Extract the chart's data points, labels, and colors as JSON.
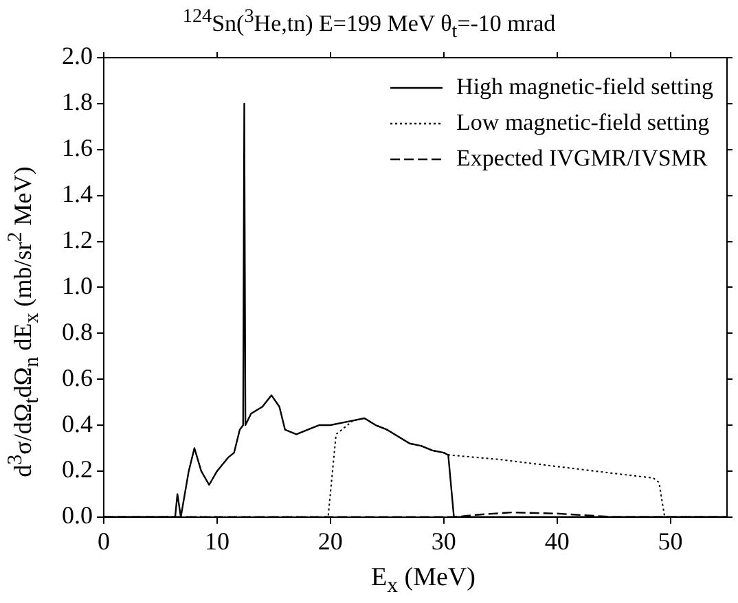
{
  "chart_data": {
    "type": "line",
    "title": "$^{124}$Sn($^{3}$He,tn) E=199 MeV θ$_{t}$=-10 mrad",
    "xlabel": "E$_{x}$ (MeV)",
    "ylabel": "d$^{3}$σ/dΩ$_{t}$dΩ$_{n}$ dE$_{x}$   (mb/sr$^{2}$ MeV)",
    "xlim": [
      0,
      55
    ],
    "xticks": [
      0,
      10,
      20,
      30,
      40,
      50
    ],
    "ylim": [
      0,
      2
    ],
    "yticks": [
      {
        "value": 0,
        "label": "0.0"
      },
      0.2,
      0.4,
      0.6,
      0.8,
      {
        "value": 1,
        "label": "1.0"
      },
      1.2,
      1.4,
      1.6,
      1.8,
      {
        "value": 2,
        "label": "2.0"
      }
    ],
    "grid": false,
    "legend": "top right",
    "marker": "none",
    "series": [
      {
        "name": "High magnetic-field setting",
        "color": "#000000",
        "line_style": "solid",
        "x": [
          0,
          6.3,
          6.5,
          6.8,
          7.5,
          8,
          8.3,
          8.6,
          9.3,
          10,
          11,
          11.5,
          12,
          12.3,
          12.4,
          12.5,
          13,
          14,
          14.8,
          15.5,
          16,
          17,
          18,
          19,
          20,
          22,
          23,
          24,
          25,
          26,
          27,
          28,
          29,
          30,
          30.4,
          30.9,
          55
        ],
        "values": [
          0,
          0,
          0.1,
          0,
          0.2,
          0.3,
          0.25,
          0.2,
          0.14,
          0.2,
          0.26,
          0.28,
          0.38,
          0.4,
          1.8,
          0.4,
          0.45,
          0.48,
          0.53,
          0.48,
          0.38,
          0.36,
          0.38,
          0.4,
          0.4,
          0.42,
          0.43,
          0.4,
          0.38,
          0.35,
          0.32,
          0.31,
          0.29,
          0.28,
          0.27,
          0,
          0
        ]
      },
      {
        "name": "Low magnetic-field setting",
        "color": "#000000",
        "line_style": "dotted",
        "x": [
          0,
          19.5,
          19.8,
          20.5,
          22,
          23,
          24,
          25,
          26,
          27,
          28,
          29,
          30,
          30.5,
          35,
          40,
          45,
          48.5,
          49,
          49.5,
          55
        ],
        "values": [
          0,
          0,
          0,
          0.36,
          0.42,
          0.43,
          0.4,
          0.38,
          0.35,
          0.32,
          0.31,
          0.29,
          0.28,
          0.27,
          0.25,
          0.22,
          0.19,
          0.17,
          0.15,
          0,
          0
        ]
      },
      {
        "name": "Expected IVGMR/IVSMR",
        "color": "#000000",
        "line_style": "dashed",
        "x": [
          0,
          31,
          33,
          36,
          40,
          45,
          55
        ],
        "values": [
          0,
          0,
          0.01,
          0.02,
          0.015,
          0,
          0
        ]
      }
    ]
  }
}
